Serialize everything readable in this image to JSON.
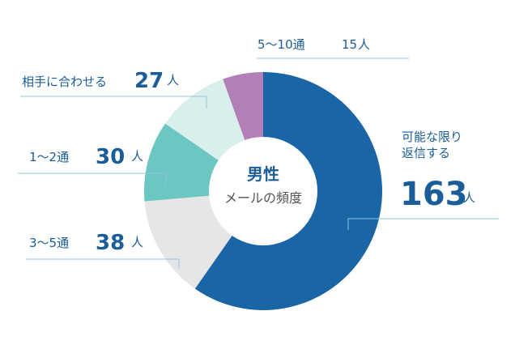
{
  "chart_data": {
    "type": "pie",
    "title": "男性",
    "subtitle": "メールの頻度",
    "unit": "人",
    "categories": [
      "可能な限り返信する",
      "3～5通",
      "1～2通",
      "相手に合わせる",
      "5～10通"
    ],
    "values": [
      163,
      38,
      30,
      27,
      15
    ],
    "colors": [
      "#1a65a5",
      "#e6e6e6",
      "#6cc6c1",
      "#d9efec",
      "#b27fb6"
    ],
    "labels": {
      "main": {
        "line1": "可能な限り",
        "line2": "返信する",
        "value": "163",
        "unit": "人"
      },
      "c35": {
        "name": "3～5通",
        "value": "38",
        "unit": "人"
      },
      "c12": {
        "name": "1～2通",
        "value": "30",
        "unit": "人"
      },
      "match": {
        "name": "相手に合わせる",
        "value": "27",
        "unit": "人"
      },
      "c510": {
        "name": "5～10通",
        "value": "15",
        "unit": "人"
      }
    }
  }
}
